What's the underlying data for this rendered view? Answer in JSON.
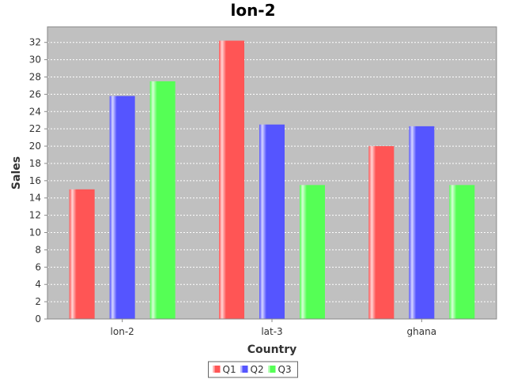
{
  "chart_data": {
    "type": "bar",
    "title": "lon-2",
    "xlabel": "Country",
    "ylabel": "Sales",
    "categories": [
      "lon-2",
      "lat-3",
      "ghana"
    ],
    "series": [
      {
        "name": "Q1",
        "color": "#ff5555",
        "values": [
          15,
          32.2,
          20
        ]
      },
      {
        "name": "Q2",
        "color": "#5555ff",
        "values": [
          25.8,
          22.5,
          22.3
        ]
      },
      {
        "name": "Q3",
        "color": "#55ff55",
        "values": [
          27.5,
          15.5,
          15.5
        ]
      }
    ],
    "ylim": [
      0,
      33.8
    ],
    "yticks": [
      0,
      2,
      4,
      6,
      8,
      10,
      12,
      14,
      16,
      18,
      20,
      22,
      24,
      26,
      28,
      30,
      32
    ],
    "grid": true,
    "legend_position": "bottom",
    "plot_background": "#c0c0c0"
  }
}
